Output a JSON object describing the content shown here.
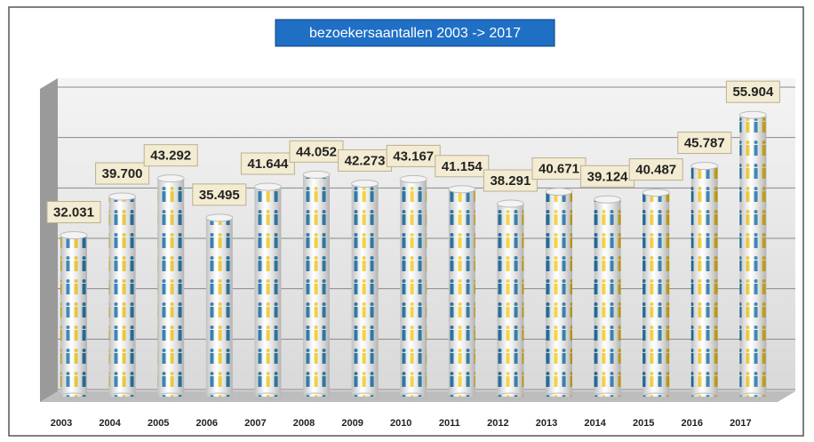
{
  "chart_data": {
    "type": "bar",
    "title": "bezoekersaantallen 2003 -> 2017",
    "categories": [
      "2003",
      "2004",
      "2005",
      "2006",
      "2007",
      "2008",
      "2009",
      "2010",
      "2011",
      "2012",
      "2013",
      "2014",
      "2015",
      "2016",
      "2017"
    ],
    "values": [
      32031,
      39700,
      43292,
      35495,
      41644,
      44052,
      42273,
      43167,
      41154,
      38291,
      40671,
      39124,
      40487,
      45787,
      55904
    ],
    "value_labels": [
      "32.031",
      "39.700",
      "43.292",
      "35.495",
      "41.644",
      "44.052",
      "42.273",
      "43.167",
      "41.154",
      "38.291",
      "40.671",
      "39.124",
      "40.487",
      "45.787",
      "55.904"
    ],
    "ylim": [
      0,
      60000
    ],
    "yticks": [
      0,
      10000,
      20000,
      30000,
      40000,
      50000,
      60000
    ],
    "grid": true
  }
}
